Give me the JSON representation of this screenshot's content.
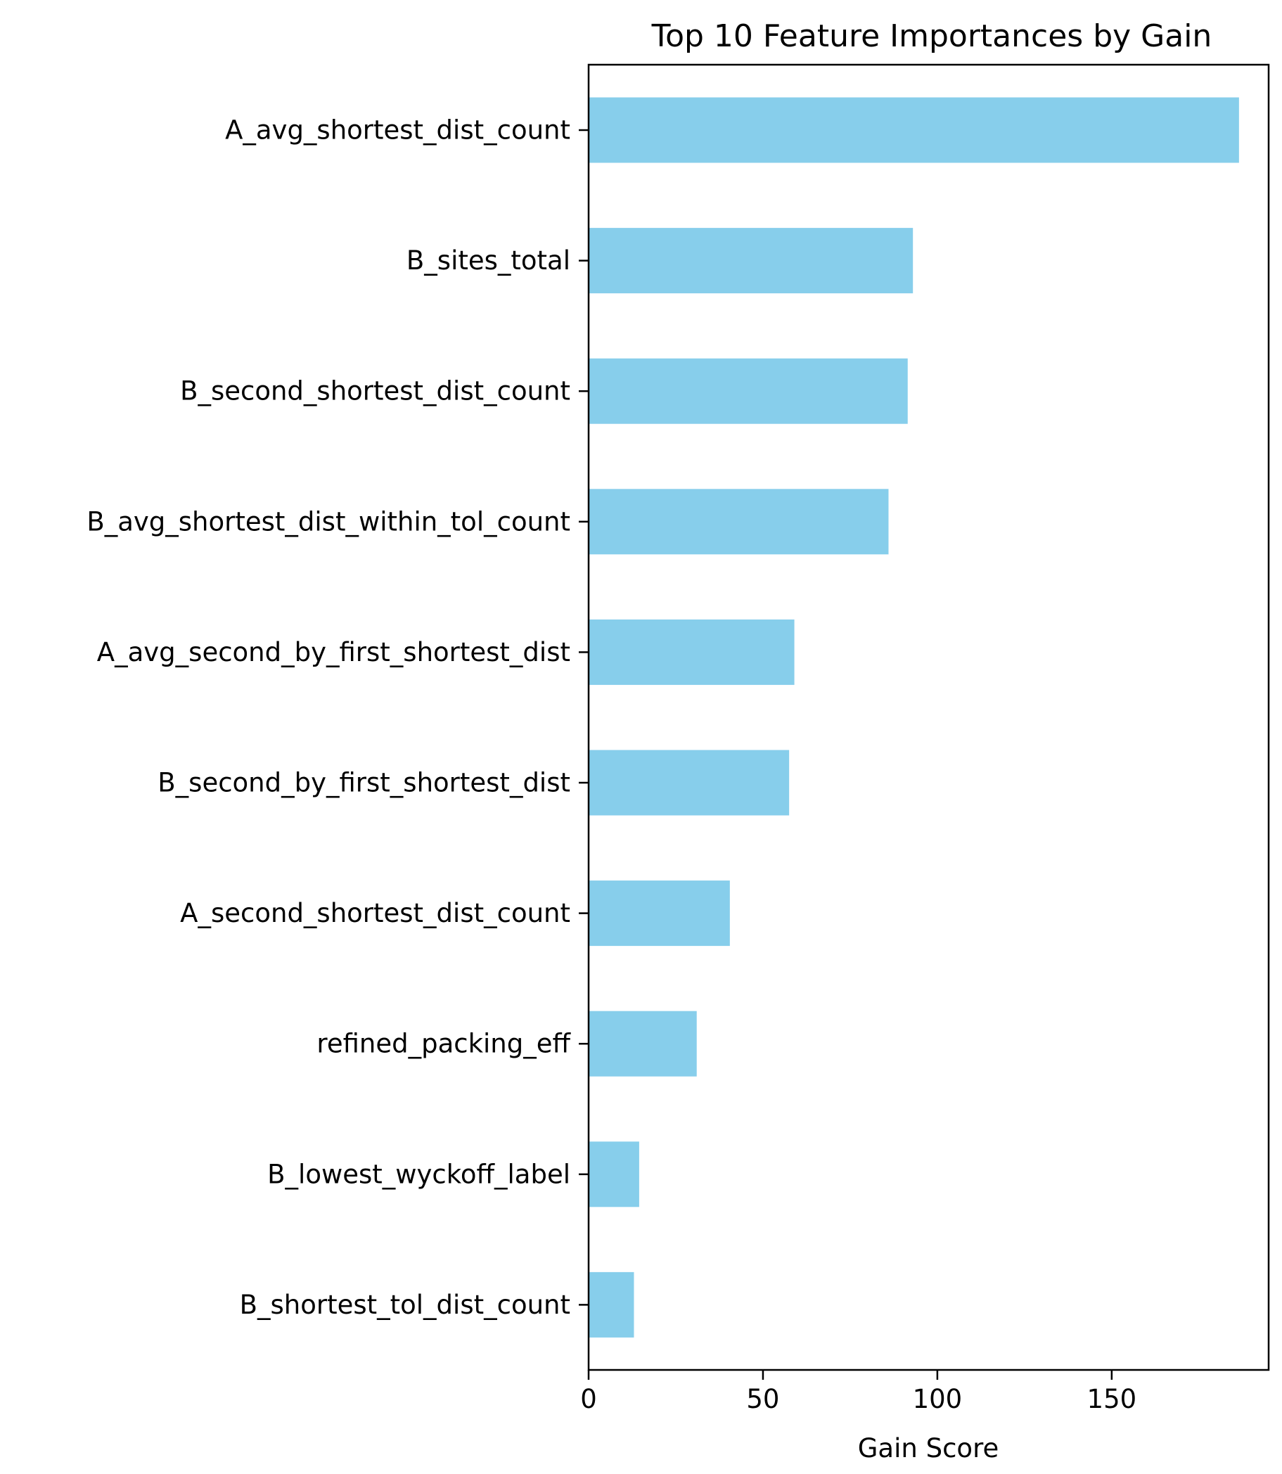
{
  "chart_data": {
    "type": "bar",
    "orientation": "horizontal",
    "title": "Top 10 Feature Importances by Gain",
    "xlabel": "Gain Score",
    "ylabel": "",
    "xlim": [
      0,
      195
    ],
    "xticks": [
      0,
      50,
      100,
      150
    ],
    "grid": false,
    "bar_color": "#87ceeb",
    "categories": [
      "A_avg_shortest_dist_count",
      "B_sites_total",
      "B_second_shortest_dist_count",
      "B_avg_shortest_dist_within_tol_count",
      "A_avg_second_by_first_shortest_dist",
      "B_second_by_first_shortest_dist",
      "A_second_shortest_dist_count",
      "refined_packing_eff",
      "B_lowest_wyckoff_label",
      "B_shortest_tol_dist_count"
    ],
    "values": [
      186.5,
      93.0,
      91.5,
      86.0,
      59.0,
      57.5,
      40.5,
      31.0,
      14.5,
      13.0
    ]
  }
}
